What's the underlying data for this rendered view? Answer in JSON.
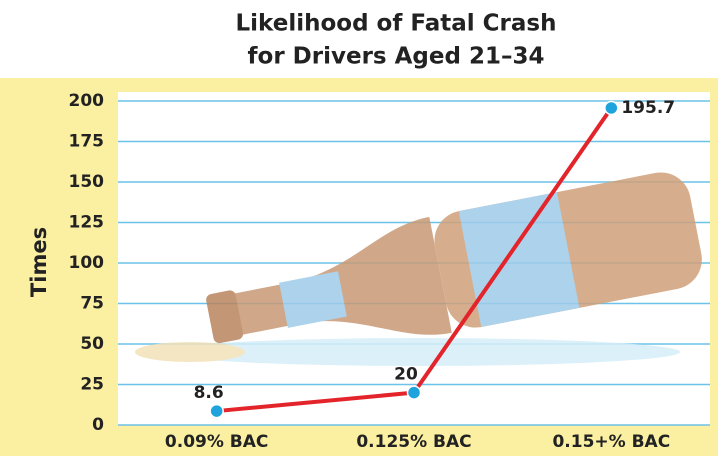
{
  "chart_data": {
    "type": "line",
    "title": "Likelihood of Fatal Crash",
    "subtitle": "for Drivers Aged 21–34",
    "y_label": "Times",
    "categories": [
      "0.09% BAC",
      "0.125% BAC",
      "0.15+% BAC"
    ],
    "values": [
      8.6,
      20,
      195.7
    ],
    "color": "#e3242b",
    "marker_color": "#1ea3dd",
    "ylim": [
      0,
      200
    ],
    "yticks": [
      0,
      25,
      50,
      75,
      100,
      125,
      150,
      175,
      200
    ],
    "grid": true
  }
}
